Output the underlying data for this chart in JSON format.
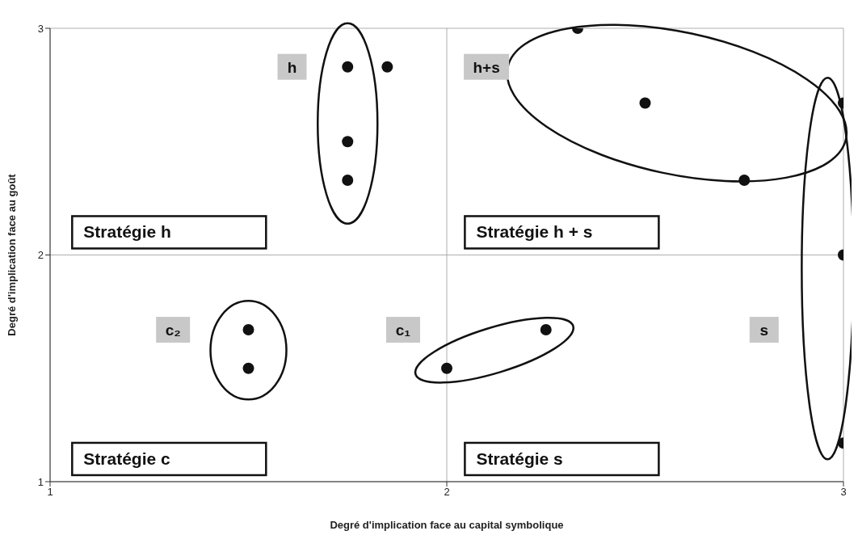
{
  "chart_data": {
    "type": "scatter",
    "xlabel": "Degré d'implication face au capital symbolique",
    "ylabel": "Degré d'implication face au goût",
    "x": [
      1.75,
      1.85,
      1.75,
      1.75,
      2.33,
      2.5,
      2.75,
      3,
      3,
      3,
      1.5,
      1.5,
      2,
      2.25
    ],
    "values": [
      2.83,
      2.83,
      2.5,
      2.33,
      3,
      2.67,
      2.33,
      2.67,
      2,
      1.17,
      1.67,
      1.5,
      1.5,
      1.67
    ],
    "color": "#111111",
    "marker": "circle",
    "xlim": [
      1,
      3
    ],
    "xticks": [
      1,
      2,
      3
    ],
    "ylim": [
      1,
      3
    ],
    "yticks": [
      1,
      2,
      3
    ],
    "grid": true,
    "legend": false,
    "annotations": [
      "h",
      "h+s",
      "c₂",
      "c₁",
      "s",
      "Stratégie h",
      "Stratégie h + s",
      "Stratégie c",
      "Stratégie s"
    ]
  }
}
